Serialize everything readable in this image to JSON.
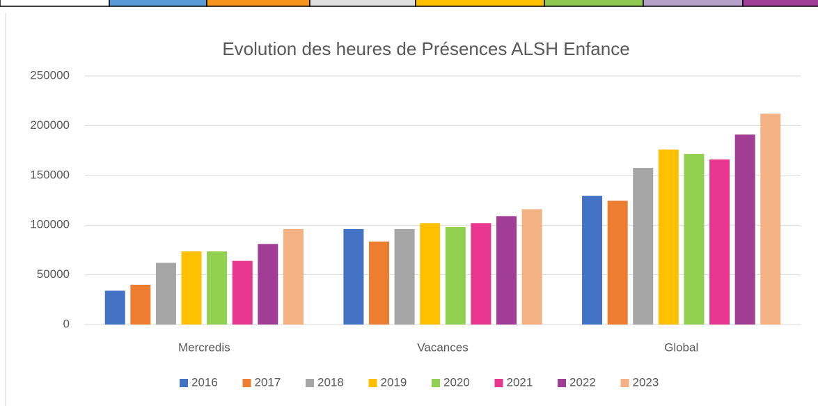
{
  "chart_data": {
    "type": "bar",
    "title": "Evolution des heures de Présences ALSH Enfance",
    "categories": [
      "Mercredis",
      "Vacances",
      "Global"
    ],
    "series": [
      {
        "name": "2016",
        "color": "#4472c4",
        "values": [
          34000,
          96000,
          129500
        ]
      },
      {
        "name": "2017",
        "color": "#ed7d31",
        "values": [
          40000,
          83500,
          124500
        ]
      },
      {
        "name": "2018",
        "color": "#a5a5a5",
        "values": [
          62000,
          96000,
          157500
        ]
      },
      {
        "name": "2019",
        "color": "#ffc000",
        "values": [
          73500,
          102000,
          176000
        ]
      },
      {
        "name": "2020",
        "color": "#92d050",
        "values": [
          73500,
          98000,
          171500
        ]
      },
      {
        "name": "2021",
        "color": "#e8368f",
        "values": [
          64000,
          102000,
          166000
        ]
      },
      {
        "name": "2022",
        "color": "#a23d96",
        "values": [
          81000,
          109000,
          191000
        ]
      },
      {
        "name": "2023",
        "color": "#f4b183",
        "values": [
          96000,
          116000,
          212000
        ]
      }
    ],
    "ylim": [
      0,
      250000
    ],
    "yticks": [
      0,
      50000,
      100000,
      150000,
      200000,
      250000
    ],
    "grid": true,
    "legend": "bottom"
  }
}
